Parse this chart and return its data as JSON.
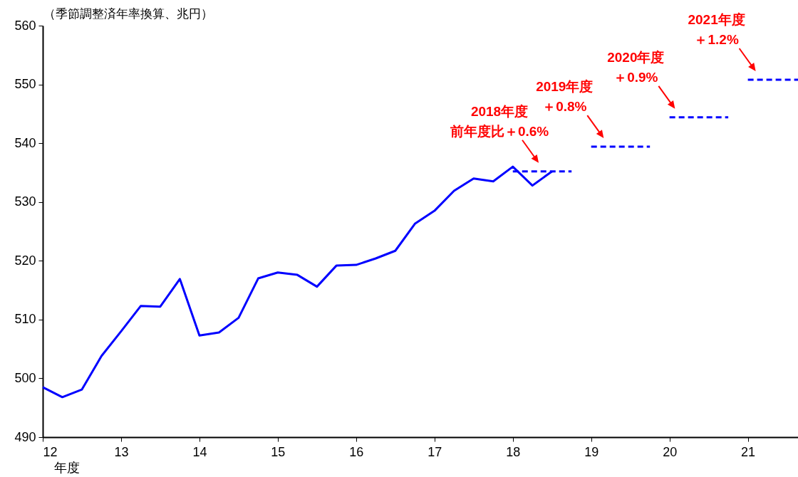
{
  "chart_data": {
    "type": "line",
    "ylabel": "（季節調整済年率換算、兆円）",
    "xlabel": "年度",
    "x": [
      12,
      12.25,
      12.5,
      12.75,
      13,
      13.25,
      13.5,
      13.75,
      14,
      14.25,
      14.5,
      14.75,
      15,
      15.25,
      15.5,
      15.75,
      16,
      16.25,
      16.5,
      16.75,
      17,
      17.25,
      17.5,
      17.75,
      18,
      18.25,
      18.5
    ],
    "series": [
      {
        "color": "#0000ff",
        "values": [
          498.5,
          496.8,
          498.1,
          503.8,
          508,
          512.3,
          512.2,
          516.9,
          507.3,
          507.8,
          510.3,
          517,
          518,
          517.6,
          515.6,
          519.2,
          519.3,
          520.4,
          521.7,
          526.3,
          528.5,
          531.9,
          534,
          533.5,
          536,
          532.8,
          535.2
        ]
      },
      {
        "color": "#0000ff",
        "line_style": "dashed",
        "x": [
          18,
          18.75
        ],
        "values": [
          535.2,
          535.2
        ]
      },
      {
        "color": "#0000ff",
        "line_style": "dashed",
        "x": [
          19,
          19.75
        ],
        "values": [
          539.4,
          539.4
        ]
      },
      {
        "color": "#0000ff",
        "line_style": "dashed",
        "x": [
          20,
          20.75
        ],
        "values": [
          544.4,
          544.4
        ]
      },
      {
        "color": "#0000ff",
        "line_style": "dashed",
        "x": [
          21,
          21.64
        ],
        "values": [
          550.8,
          550.8
        ]
      }
    ],
    "xlim": [
      12,
      21.64
    ],
    "xticks": [
      12,
      13,
      14,
      15,
      16,
      17,
      18,
      19,
      20,
      21
    ],
    "ylim": [
      490,
      560
    ],
    "yticks": [
      490,
      500,
      510,
      520,
      530,
      540,
      550,
      560
    ],
    "grid": false,
    "annotations": [
      "2018年度",
      {
        "text": "前年度比＋0.6%",
        "x": 18.33,
        "y": 535.2
      },
      "2019年度",
      {
        "text": "＋0.8%",
        "x": 19.16,
        "y": 539.4
      },
      "2020年度",
      {
        "text": "＋0.9%",
        "x": 20.07,
        "y": 544.4
      },
      "2021年度",
      {
        "text": "＋1.2%",
        "x": 21.1,
        "y": 550.8
      }
    ]
  }
}
